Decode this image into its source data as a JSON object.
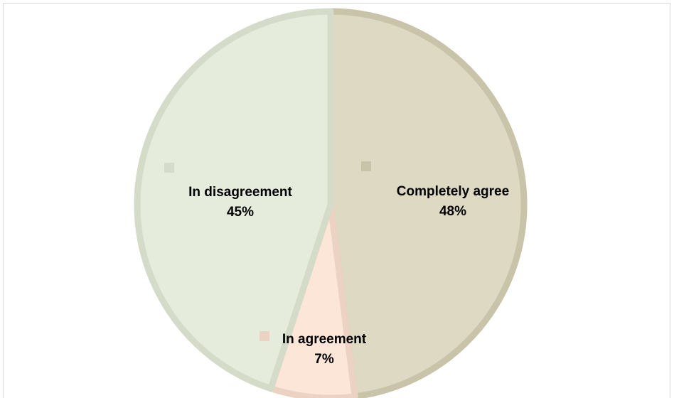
{
  "chart_data": {
    "type": "pie",
    "title": "",
    "slices": [
      {
        "label": "Completely agree",
        "value": 48,
        "display": "48%",
        "fill": "#ddd9c3",
        "stroke": "#c9c3aa"
      },
      {
        "label": "In agreement",
        "value": 7,
        "display": "7%",
        "fill": "#fbe6d7",
        "stroke": "#ecd2c2"
      },
      {
        "label": "In disagreement",
        "value": 45,
        "display": "45%",
        "fill": "#e6ecdc",
        "stroke": "#d4dbc8"
      }
    ],
    "legend": "none",
    "data_labels": "category-and-percent"
  }
}
